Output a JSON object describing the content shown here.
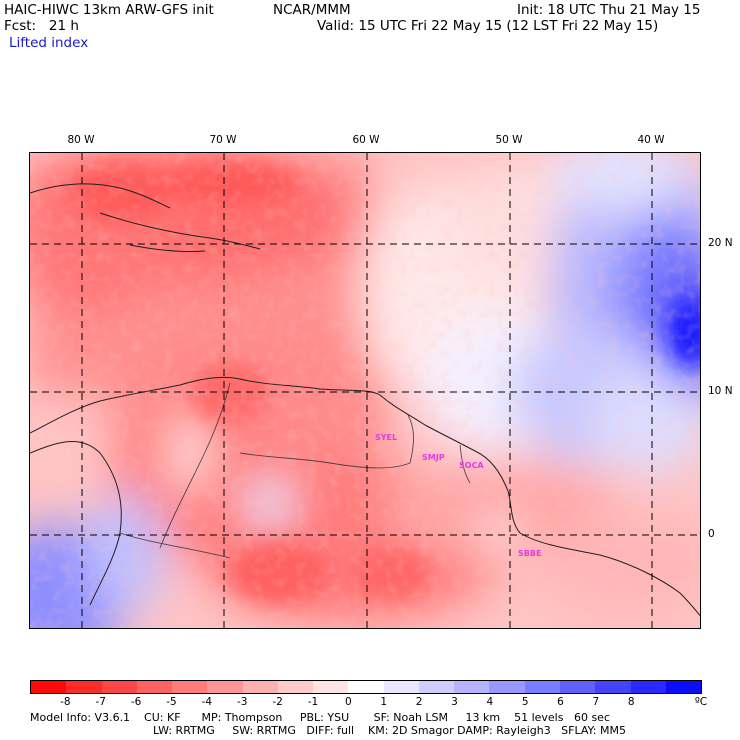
{
  "header": {
    "title": "HAIC-HIWC 13km ARW-GFS init",
    "org": "NCAR/MMM",
    "init": "Init: 18 UTC Thu 21 May 15",
    "fcst": "Fcst:   21 h",
    "valid": "Valid: 15 UTC Fri 22 May 15 (12 LST Fri 22 May 15)",
    "field": "Lifted index"
  },
  "map": {
    "lon_labels": [
      {
        "text": "80 W",
        "lon": -80
      },
      {
        "text": "70 W",
        "lon": -70
      },
      {
        "text": "60 W",
        "lon": -60
      },
      {
        "text": "50 W",
        "lon": -50
      },
      {
        "text": "40 W",
        "lon": -40
      }
    ],
    "lat_labels": [
      {
        "text": "20 N",
        "lat": 20
      },
      {
        "text": "10 N",
        "lat": 10
      },
      {
        "text": "0",
        "lat": 0
      }
    ],
    "stations": [
      {
        "id": "SYEL"
      },
      {
        "id": "SMJP"
      },
      {
        "id": "SOCA"
      },
      {
        "id": "SBBE"
      }
    ]
  },
  "colorbar": {
    "unit": "ºC",
    "colors": [
      "#ff0a0a",
      "#ff2a2a",
      "#ff4646",
      "#ff6262",
      "#ff7c7c",
      "#ff9696",
      "#ffb0b0",
      "#ffcaca",
      "#ffe4e4",
      "#ffffff",
      "#e8e8ff",
      "#cfcfff",
      "#b4b4ff",
      "#9898ff",
      "#7c7cff",
      "#6060ff",
      "#4444ff",
      "#2828ff",
      "#0c0cff"
    ],
    "labels": [
      "-8",
      "-7",
      "-6",
      "-5",
      "-4",
      "-3",
      "-2",
      "-1",
      "0",
      "1",
      "2",
      "3",
      "4",
      "5",
      "6",
      "7",
      "8"
    ]
  },
  "footer": {
    "line1": "Model Info: V3.6.1    CU: KF      MP: Thompson     PBL: YSU       SF: Noah LSM     13 km    51 levels   60 sec",
    "line2": "LW: RRTMG     SW: RRTMG   DIFF: full    KM: 2D Smagor DAMP: Rayleigh3   SFLAY: MM5"
  }
}
